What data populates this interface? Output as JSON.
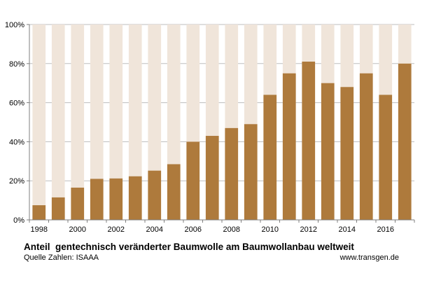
{
  "chart_data": {
    "type": "bar",
    "x": [
      1998,
      1999,
      2000,
      2001,
      2002,
      2003,
      2004,
      2005,
      2006,
      2007,
      2008,
      2009,
      2010,
      2011,
      2012,
      2013,
      2014,
      2015,
      2016,
      2017
    ],
    "values": [
      7.5,
      11.5,
      16.5,
      21,
      21.2,
      22.3,
      25.2,
      28.5,
      40,
      43,
      47,
      49,
      64,
      75,
      81,
      70,
      68,
      75,
      64,
      80
    ],
    "background_values": [
      100,
      100,
      100,
      100,
      100,
      100,
      100,
      100,
      100,
      100,
      100,
      100,
      100,
      100,
      100,
      100,
      100,
      100,
      100,
      100
    ],
    "x_tick_labels": [
      "1998",
      "2000",
      "2002",
      "2004",
      "2006",
      "2008",
      "2010",
      "2012",
      "2014",
      "2016"
    ],
    "y_tick_labels": [
      "0%",
      "20%",
      "40%",
      "60%",
      "80%",
      "100%"
    ],
    "ylim": [
      0,
      100
    ],
    "grid": true,
    "legend": "none",
    "title": "Anteil  gentechnisch veränderter Baumwolle am Baumwollanbau weltweit",
    "xlabel": "",
    "ylabel": "",
    "colors": {
      "bar": "#ae7a3c",
      "background_bar": "#f0e5da",
      "grid": "#bdbdbd",
      "axis": "#7f7f7f"
    }
  },
  "footer": {
    "source": "Quelle Zahlen: ISAAA",
    "website": "www.transgen.de"
  }
}
